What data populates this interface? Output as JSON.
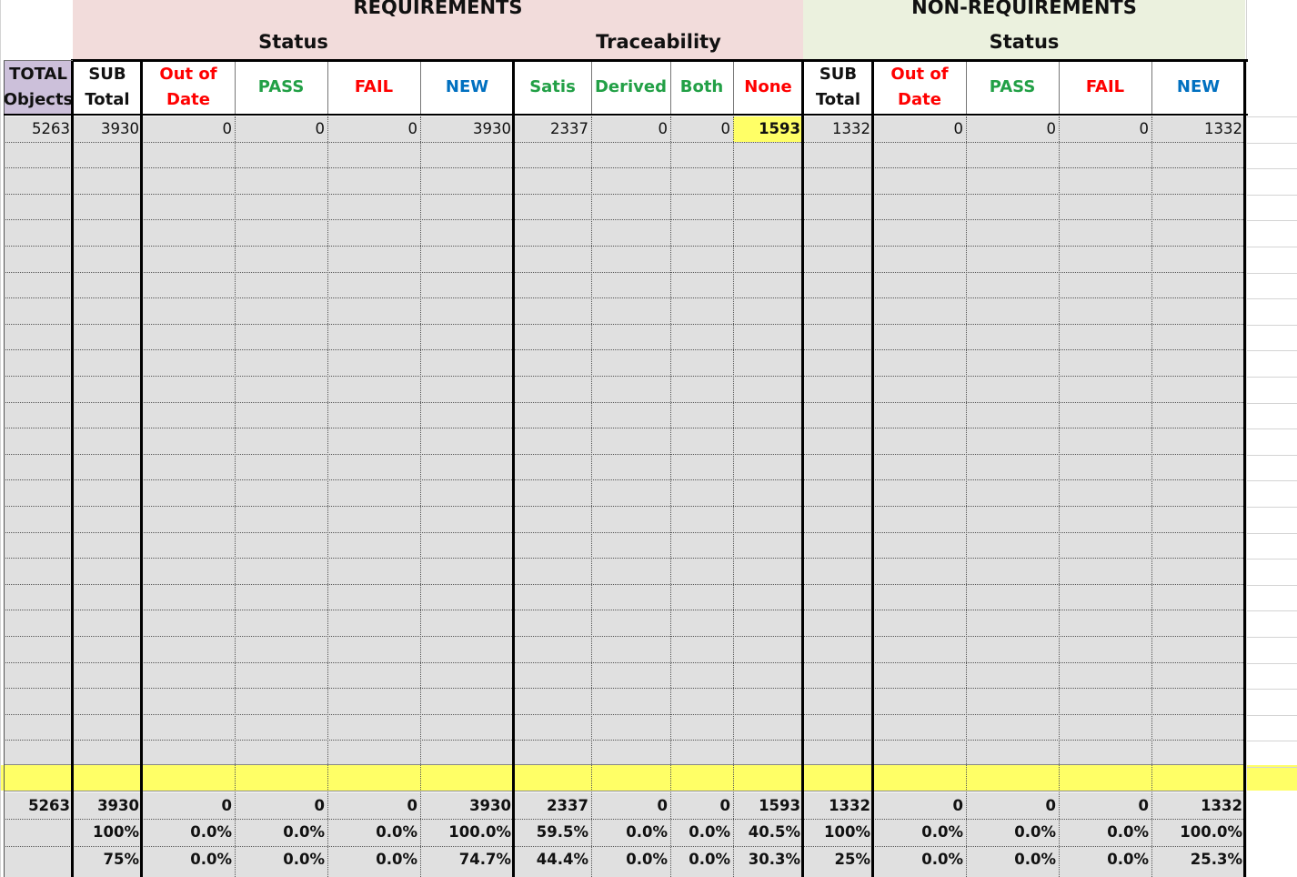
{
  "colors": {
    "requirements_bg": "#f2dcdb",
    "non_requirements_bg": "#ebf1de",
    "total_header_bg": "#ccc0da",
    "body_bg": "#e0e0e0",
    "highlight": "#ffff66",
    "red": "#ff0000",
    "green": "#22a046",
    "blue": "#0070c0"
  },
  "groups": {
    "requirements": "REQUIREMENTS",
    "non_requirements": "NON-REQUIREMENTS",
    "req_status": "Status",
    "req_traceability": "Traceability",
    "nonreq_status": "Status"
  },
  "columns": [
    {
      "label": "TOTAL\nObjects",
      "color": "#111111"
    },
    {
      "label": "SUB\nTotal",
      "color": "#111111"
    },
    {
      "label": "Out of\nDate",
      "color": "#ff0000"
    },
    {
      "label": "PASS",
      "color": "#22a046"
    },
    {
      "label": "FAIL",
      "color": "#ff0000"
    },
    {
      "label": "NEW",
      "color": "#0070c0"
    },
    {
      "label": "Satis",
      "color": "#22a046"
    },
    {
      "label": "Derived",
      "color": "#22a046"
    },
    {
      "label": "Both",
      "color": "#22a046"
    },
    {
      "label": "None",
      "color": "#ff0000"
    },
    {
      "label": "SUB\nTotal",
      "color": "#111111"
    },
    {
      "label": "Out of\nDate",
      "color": "#ff0000"
    },
    {
      "label": "PASS",
      "color": "#22a046"
    },
    {
      "label": "FAIL",
      "color": "#ff0000"
    },
    {
      "label": "NEW",
      "color": "#0070c0"
    }
  ],
  "data_row": [
    "5263",
    "3930",
    "0",
    "0",
    "0",
    "3930",
    "2337",
    "0",
    "0",
    "1593",
    "1332",
    "0",
    "0",
    "0",
    "1332"
  ],
  "totals_row": [
    "5263",
    "3930",
    "0",
    "0",
    "0",
    "3930",
    "2337",
    "0",
    "0",
    "1593",
    "1332",
    "0",
    "0",
    "0",
    "1332"
  ],
  "percent_row_1": [
    "",
    "100%",
    "0.0%",
    "0.0%",
    "0.0%",
    "100.0%",
    "59.5%",
    "0.0%",
    "0.0%",
    "40.5%",
    "100%",
    "0.0%",
    "0.0%",
    "0.0%",
    "100.0%"
  ],
  "percent_row_2": [
    "",
    "75%",
    "0.0%",
    "0.0%",
    "0.0%",
    "74.7%",
    "44.4%",
    "0.0%",
    "0.0%",
    "30.3%",
    "25%",
    "0.0%",
    "0.0%",
    "0.0%",
    "25.3%"
  ]
}
